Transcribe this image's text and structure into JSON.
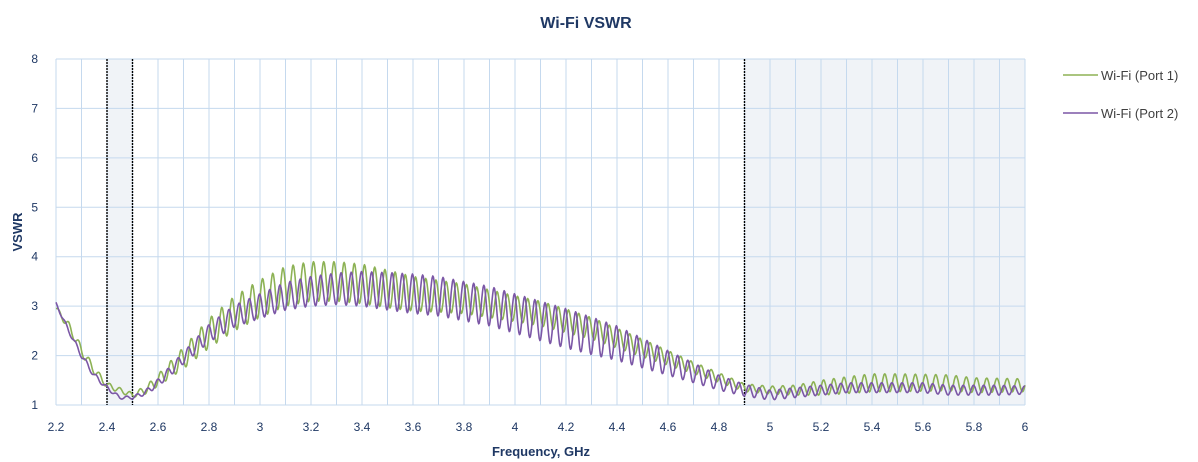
{
  "chart_data": {
    "type": "line",
    "title": "Wi-Fi VSWR",
    "xlabel": "Frequency, GHz",
    "ylabel": "VSWR",
    "xlim": [
      2.2,
      6.0
    ],
    "ylim": [
      1,
      8
    ],
    "x_ticks": [
      "2.2",
      "2.4",
      "2.6",
      "2.8",
      "3",
      "3.2",
      "3.4",
      "3.6",
      "3.8",
      "4",
      "4.2",
      "4.4",
      "4.6",
      "4.8",
      "5",
      "5.2",
      "5.4",
      "5.6",
      "5.8",
      "6"
    ],
    "y_ticks": [
      "1",
      "2",
      "3",
      "4",
      "5",
      "6",
      "7",
      "8"
    ],
    "grid": true,
    "legend_position": "right",
    "shaded_bands": [
      {
        "from": 2.4,
        "to": 2.5
      },
      {
        "from": 4.9,
        "to": 6.0
      }
    ],
    "vertical_markers": [
      2.4,
      2.5,
      4.9
    ],
    "series": [
      {
        "name": "Wi-Fi (Port 1)",
        "color": "#8db255",
        "ripple_period_ghz": 0.04,
        "x": [
          2.2,
          2.25,
          2.3,
          2.35,
          2.4,
          2.45,
          2.5,
          2.55,
          2.6,
          2.7,
          2.8,
          2.9,
          3.0,
          3.1,
          3.2,
          3.3,
          3.4,
          3.5,
          3.6,
          3.7,
          3.8,
          3.9,
          4.0,
          4.1,
          4.2,
          4.3,
          4.4,
          4.5,
          4.6,
          4.7,
          4.8,
          4.9,
          5.0,
          5.1,
          5.2,
          5.3,
          5.4,
          5.5,
          5.6,
          5.7,
          5.8,
          5.9,
          6.0
        ],
        "center": [
          2.95,
          2.6,
          2.1,
          1.7,
          1.4,
          1.3,
          1.2,
          1.3,
          1.5,
          1.95,
          2.45,
          2.85,
          3.15,
          3.4,
          3.5,
          3.5,
          3.45,
          3.35,
          3.25,
          3.2,
          3.15,
          3.05,
          2.95,
          2.85,
          2.7,
          2.55,
          2.35,
          2.15,
          1.95,
          1.75,
          1.55,
          1.35,
          1.3,
          1.3,
          1.35,
          1.4,
          1.45,
          1.45,
          1.45,
          1.45,
          1.4,
          1.4,
          1.4
        ],
        "amplitude": [
          0.05,
          0.08,
          0.1,
          0.08,
          0.06,
          0.05,
          0.05,
          0.08,
          0.12,
          0.22,
          0.3,
          0.35,
          0.38,
          0.4,
          0.4,
          0.4,
          0.4,
          0.38,
          0.35,
          0.32,
          0.3,
          0.28,
          0.26,
          0.25,
          0.24,
          0.22,
          0.2,
          0.18,
          0.15,
          0.12,
          0.1,
          0.08,
          0.08,
          0.1,
          0.15,
          0.17,
          0.18,
          0.18,
          0.17,
          0.16,
          0.15,
          0.14,
          0.13
        ]
      },
      {
        "name": "Wi-Fi (Port 2)",
        "color": "#7b57a6",
        "ripple_period_ghz": 0.04,
        "x": [
          2.2,
          2.25,
          2.3,
          2.35,
          2.4,
          2.45,
          2.5,
          2.55,
          2.6,
          2.7,
          2.8,
          2.9,
          3.0,
          3.1,
          3.2,
          3.3,
          3.4,
          3.5,
          3.6,
          3.7,
          3.8,
          3.9,
          4.0,
          4.1,
          4.2,
          4.3,
          4.4,
          4.5,
          4.6,
          4.7,
          4.8,
          4.9,
          5.0,
          5.1,
          5.2,
          5.3,
          5.4,
          5.5,
          5.6,
          5.7,
          5.8,
          5.9,
          6.0
        ],
        "center": [
          3.05,
          2.5,
          2.0,
          1.6,
          1.35,
          1.15,
          1.15,
          1.25,
          1.45,
          1.95,
          2.45,
          2.8,
          3.0,
          3.2,
          3.3,
          3.35,
          3.35,
          3.3,
          3.25,
          3.2,
          3.1,
          3.0,
          2.85,
          2.7,
          2.55,
          2.4,
          2.25,
          2.05,
          1.85,
          1.65,
          1.45,
          1.3,
          1.2,
          1.25,
          1.3,
          1.35,
          1.35,
          1.35,
          1.35,
          1.3,
          1.3,
          1.3,
          1.3
        ],
        "amplitude": [
          0.03,
          0.04,
          0.05,
          0.05,
          0.04,
          0.03,
          0.03,
          0.05,
          0.08,
          0.12,
          0.18,
          0.22,
          0.25,
          0.28,
          0.3,
          0.32,
          0.35,
          0.38,
          0.4,
          0.4,
          0.4,
          0.4,
          0.4,
          0.4,
          0.4,
          0.38,
          0.35,
          0.3,
          0.25,
          0.2,
          0.15,
          0.12,
          0.1,
          0.1,
          0.1,
          0.1,
          0.1,
          0.1,
          0.1,
          0.1,
          0.1,
          0.1,
          0.08
        ]
      }
    ]
  }
}
